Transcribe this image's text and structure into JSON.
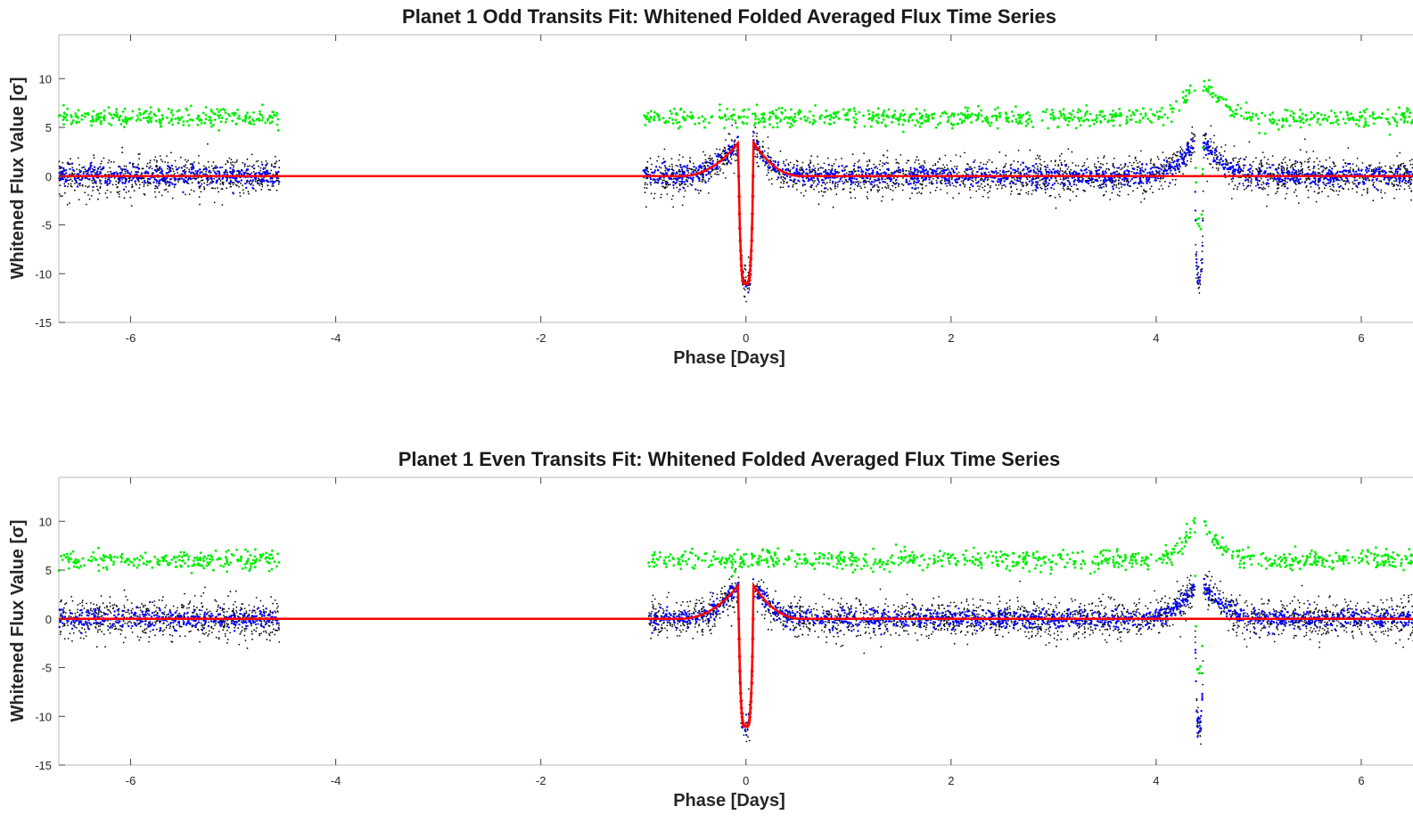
{
  "colors": {
    "raw": "#000000",
    "binned": "#0000ff",
    "fit": "#ff0000",
    "residual": "#00ee00",
    "axis": "#262626"
  },
  "chart_data": [
    {
      "type": "scatter",
      "title": "Planet 1 Odd Transits Fit: Whitened Folded Averaged Flux Time Series",
      "xlabel": "Phase [Days]",
      "ylabel": "Whitened Flux Value [σ]",
      "xlim": [
        -6.7,
        6.6
      ],
      "ylim": [
        -15,
        14.5
      ],
      "xticks": [
        -6,
        -4,
        -2,
        0,
        2,
        4,
        6
      ],
      "yticks": [
        -15,
        -10,
        -5,
        0,
        5,
        10
      ],
      "grid": false,
      "legend": "none",
      "gap": [
        -4.55,
        -1.0
      ],
      "series": [
        {
          "role": "raw whitened flux",
          "color": "black",
          "baseline": 0,
          "spread": 1.0
        },
        {
          "role": "binned whitened flux",
          "color": "blue",
          "baseline": 0,
          "spread": 0.5
        },
        {
          "role": "residual (offset)",
          "color": "green",
          "baseline": 6,
          "spread": 0.5
        },
        {
          "role": "model fit",
          "color": "red"
        }
      ],
      "features": {
        "primary_transit": {
          "center": 0.0,
          "depth": -11,
          "halfwidth": 0.07,
          "shoulder_peak": 3.5
        },
        "secondary_feature": {
          "center": 4.42,
          "depth": -11,
          "halfwidth": 0.04,
          "shoulder_peak": 3.5
        }
      }
    },
    {
      "type": "scatter",
      "title": "Planet 1 Even Transits Fit: Whitened Folded Averaged Flux Time Series",
      "xlabel": "Phase [Days]",
      "ylabel": "Whitened Flux Value [σ]",
      "xlim": [
        -6.7,
        6.6
      ],
      "ylim": [
        -15,
        14.5
      ],
      "xticks": [
        -6,
        -4,
        -2,
        0,
        2,
        4,
        6
      ],
      "yticks": [
        -15,
        -10,
        -5,
        0,
        5,
        10
      ],
      "grid": false,
      "legend": "none",
      "gap": [
        -4.55,
        -0.95
      ],
      "series": [
        {
          "role": "raw whitened flux",
          "color": "black",
          "baseline": 0,
          "spread": 1.0
        },
        {
          "role": "binned whitened flux",
          "color": "blue",
          "baseline": 0,
          "spread": 0.5
        },
        {
          "role": "residual (offset)",
          "color": "green",
          "baseline": 6,
          "spread": 0.5
        },
        {
          "role": "model fit",
          "color": "red"
        }
      ],
      "features": {
        "primary_transit": {
          "center": 0.0,
          "depth": -11,
          "halfwidth": 0.07,
          "shoulder_peak": 3.5
        },
        "secondary_feature": {
          "center": 4.42,
          "depth": -11,
          "halfwidth": 0.04,
          "shoulder_peak": 3.5
        }
      }
    }
  ]
}
